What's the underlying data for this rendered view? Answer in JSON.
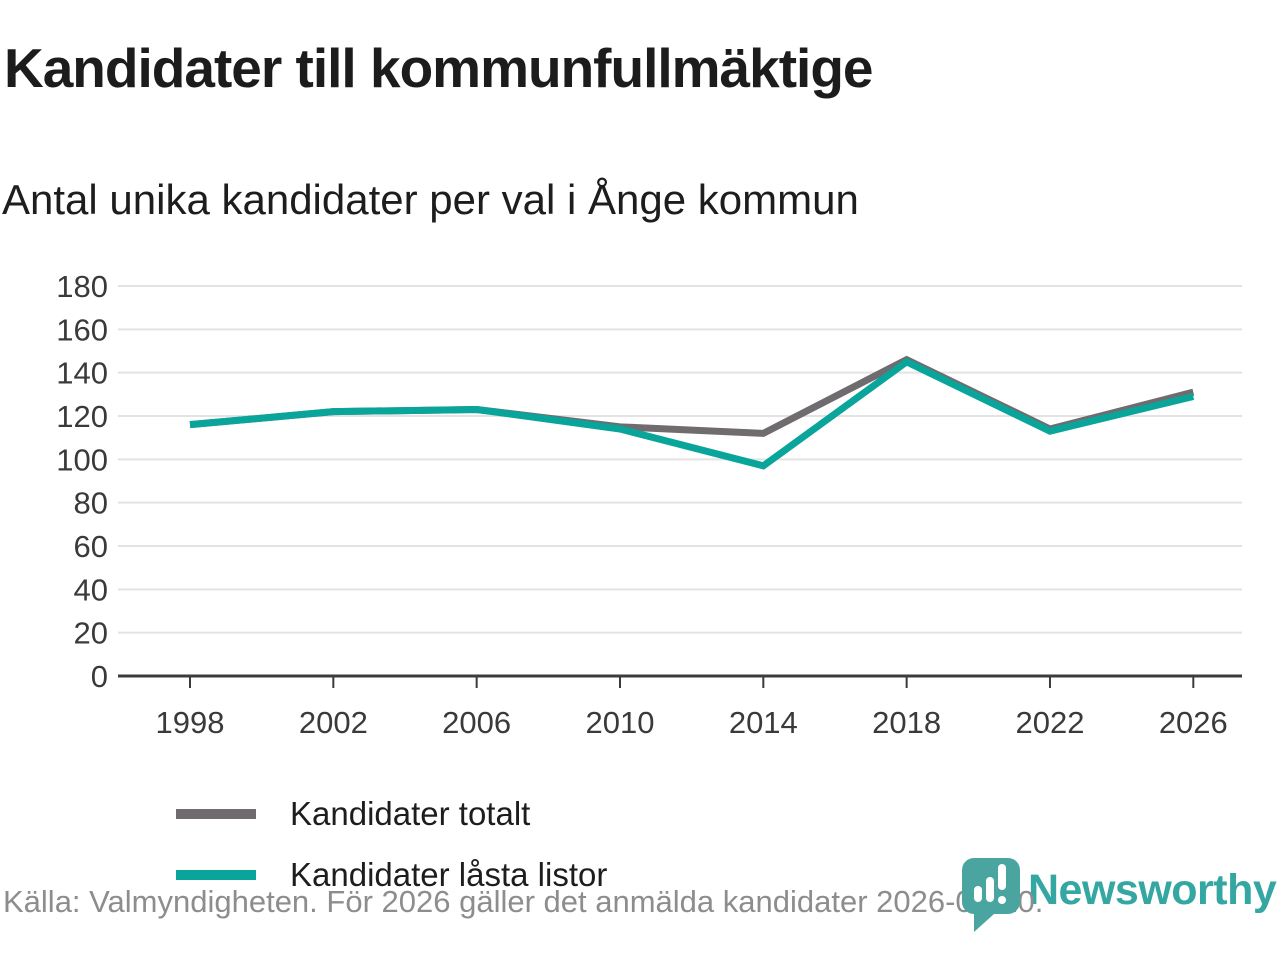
{
  "title": "Kandidater till kommunfullmäktige",
  "subtitle": "Antal unika kandidater per val i Ånge kommun",
  "footer": {
    "source_note": "Källa: Valmyndigheten. För 2026 gäller det anmälda kandidater 2026-04-10."
  },
  "logo": {
    "wordmark": "Newsworthy",
    "icon": "bar-chart-speech-bubble-icon",
    "icon_color": "#4aa5a1",
    "wordmark_color": "#35a7a2"
  },
  "colors": {
    "background": "#ffffff",
    "grid": "#e3e3e3",
    "axis": "#3b3b3b",
    "tick_label": "#3a3a3a",
    "series_total": "#6f6b6f",
    "series_locked": "#0aa59a",
    "footer_text": "#8d8d8d"
  },
  "chart_data": {
    "type": "line",
    "title": "Kandidater till kommunfullmäktige",
    "subtitle": "Antal unika kandidater per val i Ånge kommun",
    "x": [
      1998,
      2002,
      2006,
      2010,
      2014,
      2018,
      2022,
      2026
    ],
    "xtick_labels": [
      "1998",
      "2002",
      "2006",
      "2010",
      "2014",
      "2018",
      "2022",
      "2026"
    ],
    "series": [
      {
        "name": "Kandidater totalt",
        "color": "#6f6b6f",
        "values": [
          116,
          122,
          123,
          115,
          112,
          146,
          114,
          131
        ]
      },
      {
        "name": "Kandidater låsta listor",
        "color": "#0aa59a",
        "values": [
          116,
          122,
          123,
          114,
          97,
          145,
          113,
          129
        ]
      }
    ],
    "xlabel": "",
    "ylabel": "",
    "ylim": [
      0,
      180
    ],
    "yticks": [
      0,
      20,
      40,
      60,
      80,
      100,
      120,
      140,
      160,
      180
    ],
    "grid": true,
    "legend_position": "inside-lower-left"
  }
}
